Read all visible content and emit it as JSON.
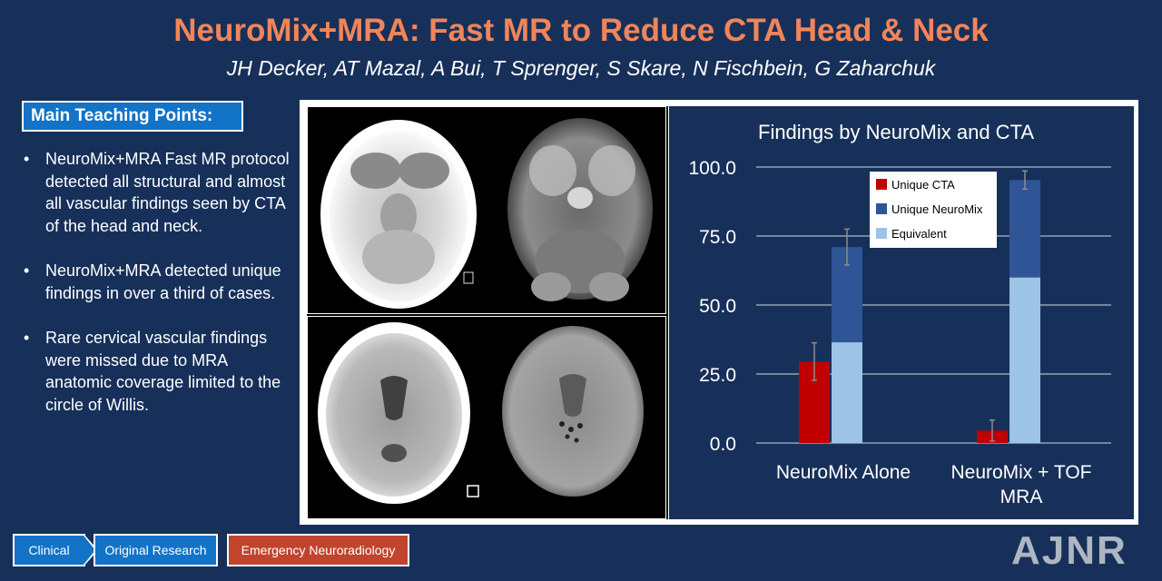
{
  "header": {
    "title": "NeuroMix+MRA: Fast MR to Reduce CTA Head & Neck",
    "authors": "JH Decker, AT Mazal, A Bui, T Sprenger, S Skare, N Fischbein, G Zaharchuk"
  },
  "teaching": {
    "heading": "Main Teaching Points:",
    "points": [
      "NeuroMix+MRA Fast MR protocol detected all structural and almost all vascular findings seen by CTA of the head and neck.",
      "NeuroMix+MRA detected unique findings in over a third of cases.",
      "Rare cervical vascular findings were missed due to MRA anatomic coverage limited to the circle of Willis."
    ]
  },
  "chart_data": {
    "type": "bar",
    "stacked": true,
    "title": "Findings by NeuroMix and CTA",
    "categories": [
      "NeuroMix Alone",
      "NeuroMix + TOF MRA"
    ],
    "y_ticks": [
      "100.0",
      "75.0",
      "50.0",
      "25.0",
      "0.0"
    ],
    "ylim": [
      0,
      100
    ],
    "grid": true,
    "legend_position": "top-right",
    "series": [
      {
        "name": "Unique CTA",
        "color": "#c00000",
        "values": [
          29.5,
          4.5
        ],
        "error": [
          6.8,
          3.8
        ]
      },
      {
        "name": "Unique NeuroMix",
        "color": "#2f5597",
        "values": [
          34.5,
          35.3
        ],
        "error": [
          6.5,
          3.3
        ]
      },
      {
        "name": "Equivalent",
        "color": "#9dc3e6",
        "values": [
          36.5,
          60.0
        ]
      }
    ]
  },
  "footer": {
    "tags": [
      "Clinical",
      "Original Research",
      "Emergency Neuroradiology"
    ],
    "logo": "AJNR"
  },
  "colors": {
    "background": "#17305a",
    "title": "#f0855a",
    "tag_blue": "#1273c7",
    "tag_red": "#c1442e"
  }
}
